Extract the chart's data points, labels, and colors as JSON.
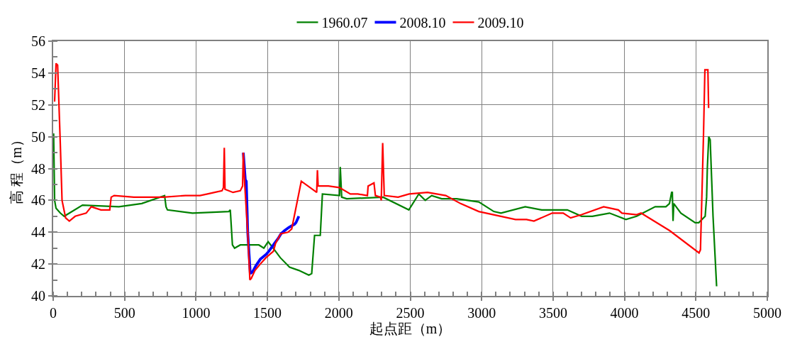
{
  "chart_data": {
    "type": "line",
    "xlabel": "起点距（m）",
    "ylabel": "高 程（m）",
    "xlim": [
      0,
      5000
    ],
    "xticks": [
      0,
      500,
      1000,
      1500,
      2000,
      2500,
      3000,
      3500,
      4000,
      4500,
      5000
    ],
    "ylim": [
      40,
      56
    ],
    "yticks": [
      40,
      42,
      44,
      46,
      48,
      50,
      52,
      54,
      56
    ],
    "grid": true,
    "legend": "top",
    "marker": "none",
    "line_style": "solid",
    "series": [
      {
        "name": "1960.07",
        "color": "#008000",
        "x": [
          0,
          3,
          10,
          20,
          50,
          77,
          205,
          460,
          620,
          780,
          790,
          800,
          975,
          1230,
          1240,
          1255,
          1270,
          1310,
          1440,
          1475,
          1505,
          1540,
          1590,
          1655,
          1720,
          1790,
          1810,
          1830,
          1870,
          1885,
          2005,
          2010,
          2020,
          2055,
          2310,
          2490,
          2560,
          2605,
          2650,
          2720,
          2825,
          2980,
          3085,
          3135,
          3305,
          3420,
          3600,
          3700,
          3775,
          3895,
          4010,
          4085,
          4215,
          4290,
          4315,
          4330,
          4335,
          4340,
          4345,
          4395,
          4495,
          4520,
          4565,
          4575,
          4580,
          4590,
          4600,
          4620,
          4645
        ],
        "values": [
          48.6,
          50.2,
          46.0,
          45.5,
          45.2,
          45.0,
          45.7,
          45.6,
          45.8,
          46.3,
          45.6,
          45.4,
          45.2,
          45.3,
          45.4,
          43.2,
          43.0,
          43.2,
          43.2,
          43.0,
          43.4,
          43.0,
          42.4,
          41.8,
          41.6,
          41.3,
          41.4,
          43.8,
          43.8,
          46.4,
          46.3,
          48.1,
          46.2,
          46.1,
          46.2,
          45.4,
          46.4,
          46.0,
          46.3,
          46.1,
          46.1,
          45.9,
          45.3,
          45.2,
          45.6,
          45.4,
          45.4,
          45.0,
          45.0,
          45.2,
          44.8,
          45.0,
          45.6,
          45.6,
          45.8,
          46.5,
          46.5,
          44.7,
          45.8,
          45.2,
          44.6,
          44.6,
          45.0,
          46.2,
          48.0,
          50.0,
          49.8,
          45.0,
          40.6
        ]
      },
      {
        "name": "2008.10",
        "color": "#0000ff",
        "x": [
          1331,
          1345,
          1352,
          1362,
          1380,
          1395,
          1420,
          1450,
          1490,
          1510,
          1550,
          1575,
          1595,
          1620,
          1650,
          1690,
          1700,
          1720
        ],
        "values": [
          49.0,
          47.3,
          47.2,
          44.0,
          41.4,
          41.5,
          41.9,
          42.3,
          42.6,
          42.8,
          43.3,
          43.6,
          43.9,
          44.1,
          44.3,
          44.5,
          44.6,
          45.0
        ]
      },
      {
        "name": "2009.10",
        "color": "#ff0000",
        "x": [
          10,
          20,
          31,
          50,
          62,
          87,
          113,
          154,
          231,
          267,
          334,
          396,
          406,
          427,
          565,
          770,
          925,
          1028,
          1080,
          1130,
          1182,
          1192,
          1198,
          1203,
          1259,
          1310,
          1326,
          1331,
          1341,
          1362,
          1377,
          1387,
          1413,
          1450,
          1490,
          1542,
          1557,
          1593,
          1644,
          1670,
          1737,
          1799,
          1845,
          1850,
          1855,
          1927,
          2004,
          2081,
          2133,
          2200,
          2205,
          2246,
          2256,
          2292,
          2297,
          2307,
          2318,
          2415,
          2492,
          2621,
          2749,
          2852,
          2980,
          3237,
          3314,
          3366,
          3494,
          3571,
          3623,
          3700,
          3854,
          3957,
          3982,
          4085,
          4116,
          4316,
          4522,
          4532,
          4553,
          4563,
          4584,
          4589
        ],
        "values": [
          52.2,
          54.6,
          54.5,
          49.5,
          46.0,
          44.9,
          44.7,
          45.0,
          45.2,
          45.6,
          45.4,
          45.4,
          46.2,
          46.3,
          46.2,
          46.2,
          46.3,
          46.3,
          46.4,
          46.5,
          46.6,
          46.8,
          49.3,
          46.7,
          46.5,
          46.6,
          46.9,
          49.0,
          47.0,
          44.0,
          41.0,
          41.1,
          41.6,
          42.0,
          42.4,
          42.8,
          43.3,
          43.9,
          44.0,
          44.2,
          47.2,
          46.8,
          46.5,
          47.9,
          46.9,
          46.9,
          46.8,
          46.4,
          46.4,
          46.3,
          46.9,
          47.1,
          46.3,
          46.2,
          46.0,
          49.6,
          46.3,
          46.2,
          46.4,
          46.5,
          46.3,
          45.8,
          45.3,
          44.8,
          44.8,
          44.7,
          45.2,
          45.2,
          44.9,
          45.1,
          45.6,
          45.4,
          45.2,
          45.1,
          45.2,
          44.1,
          42.7,
          42.9,
          50.0,
          54.2,
          54.2,
          51.8
        ]
      }
    ]
  }
}
